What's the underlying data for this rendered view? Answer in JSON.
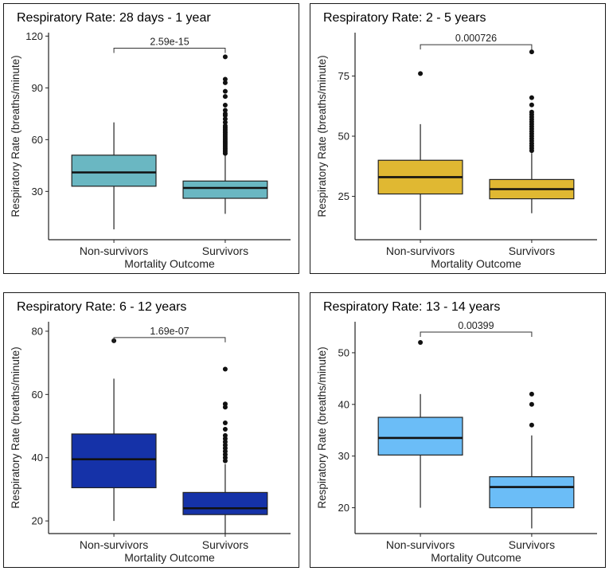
{
  "chart_data": [
    {
      "type": "boxplot",
      "title": "Respiratory Rate: 28 days - 1 year",
      "xlabel": "Mortality Outcome",
      "ylabel": "Respiratory Rate (breaths/minute)",
      "categories": [
        "Non-survivors",
        "Survivors"
      ],
      "ylim": [
        2,
        122
      ],
      "yticks": [
        30,
        60,
        90,
        120
      ],
      "fill": "#6ab7c2",
      "boxes": [
        {
          "category": "Non-survivors",
          "whisker_low": 8,
          "q1": 33,
          "median": 41,
          "q3": 51,
          "whisker_high": 70,
          "outliers": []
        },
        {
          "category": "Survivors",
          "whisker_low": 17,
          "q1": 26,
          "median": 32,
          "q3": 36,
          "whisker_high": 51,
          "outliers": [
            52,
            53,
            54,
            55,
            56,
            57,
            58,
            59,
            60,
            61,
            62,
            63,
            64,
            65,
            66,
            67,
            68,
            70,
            72,
            74,
            75,
            77,
            80,
            85,
            88,
            93,
            95,
            108
          ]
        }
      ],
      "comparison": {
        "label": "2.59e-15",
        "y": 113
      }
    },
    {
      "type": "boxplot",
      "title": "Respiratory Rate: 2 - 5 years",
      "xlabel": "Mortality Outcome",
      "ylabel": "Respiratory Rate (breaths/minute)",
      "categories": [
        "Non-survivors",
        "Survivors"
      ],
      "ylim": [
        7,
        93
      ],
      "yticks": [
        25,
        50,
        75
      ],
      "fill": "#e0b832",
      "boxes": [
        {
          "category": "Non-survivors",
          "whisker_low": 11,
          "q1": 26,
          "median": 33,
          "q3": 40,
          "whisker_high": 55,
          "outliers": [
            76
          ]
        },
        {
          "category": "Survivors",
          "whisker_low": 18,
          "q1": 24,
          "median": 28,
          "q3": 32,
          "whisker_high": 43,
          "outliers": [
            44,
            45,
            46,
            47,
            48,
            49,
            50,
            51,
            52,
            53,
            54,
            55,
            56,
            57,
            58,
            59,
            60,
            63,
            66,
            85
          ]
        }
      ],
      "comparison": {
        "label": "0.000726",
        "y": 88
      }
    },
    {
      "type": "boxplot",
      "title": "Respiratory Rate: 6 - 12 years",
      "xlabel": "Mortality Outcome",
      "ylabel": "Respiratory Rate (breaths/minute)",
      "categories": [
        "Non-survivors",
        "Survivors"
      ],
      "ylim": [
        16,
        83
      ],
      "yticks": [
        20,
        40,
        60,
        80
      ],
      "fill": "#1532a8",
      "boxes": [
        {
          "category": "Non-survivors",
          "whisker_low": 20,
          "q1": 30.5,
          "median": 39.5,
          "q3": 47.5,
          "whisker_high": 65,
          "outliers": [
            77
          ]
        },
        {
          "category": "Survivors",
          "whisker_low": 16,
          "q1": 22,
          "median": 24,
          "q3": 29,
          "whisker_high": 38,
          "outliers": [
            39,
            40,
            41,
            42,
            43,
            44,
            45,
            46,
            47,
            49,
            51,
            56,
            57,
            68
          ]
        }
      ],
      "comparison": {
        "label": "1.69e-07",
        "y": 78
      }
    },
    {
      "type": "boxplot",
      "title": "Respiratory Rate: 13 - 14 years",
      "xlabel": "Mortality Outcome",
      "ylabel": "Respiratory Rate (breaths/minute)",
      "categories": [
        "Non-survivors",
        "Survivors"
      ],
      "ylim": [
        15,
        56
      ],
      "yticks": [
        20,
        30,
        40,
        50
      ],
      "fill": "#6bbdf7",
      "boxes": [
        {
          "category": "Non-survivors",
          "whisker_low": 20,
          "q1": 30.2,
          "median": 33.5,
          "q3": 37.5,
          "whisker_high": 42,
          "outliers": [
            52
          ]
        },
        {
          "category": "Survivors",
          "whisker_low": 16,
          "q1": 20,
          "median": 24,
          "q3": 26,
          "whisker_high": 34,
          "outliers": [
            36,
            40,
            42
          ]
        }
      ],
      "comparison": {
        "label": "0.00399",
        "y": 54
      }
    }
  ]
}
